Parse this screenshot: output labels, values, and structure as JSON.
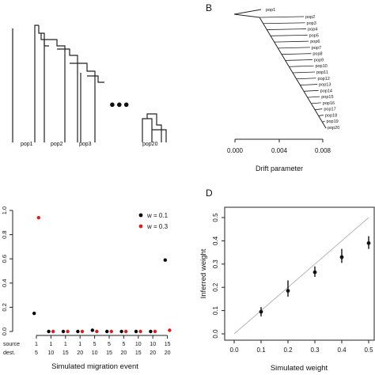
{
  "panels": {
    "A": {
      "labels": [
        "pop1",
        "pop2",
        "pop3",
        "pop20"
      ],
      "ellipsis": "●●●"
    },
    "B": {
      "letter": "B"
    },
    "C": {
      "letter": ""
    },
    "D": {
      "letter": "D"
    }
  },
  "chart_data": [
    {
      "panel": "B",
      "type": "tree",
      "xlabel": "Drift parameter",
      "xticks": [
        "0.000",
        "0.004",
        "0.008"
      ],
      "xlim": [
        0.0,
        0.01
      ],
      "populations": [
        "pop1",
        "pop2",
        "pop3",
        "pop4",
        "pop5",
        "pop6",
        "pop7",
        "pop8",
        "pop9",
        "pop10",
        "pop11",
        "pop12",
        "pop13",
        "pop14",
        "pop15",
        "pop16",
        "pop17",
        "pop18",
        "pop19",
        "pop20"
      ]
    },
    {
      "panel": "C",
      "type": "scatter",
      "xlabel": "Simulated migration event",
      "row_labels": [
        "source",
        "dest."
      ],
      "categories": [
        {
          "source": "1",
          "dest": "5"
        },
        {
          "source": "1",
          "dest": "10"
        },
        {
          "source": "1",
          "dest": "15"
        },
        {
          "source": "1",
          "dest": "20"
        },
        {
          "source": "5",
          "dest": "10"
        },
        {
          "source": "5",
          "dest": "15"
        },
        {
          "source": "5",
          "dest": "20"
        },
        {
          "source": "10",
          "dest": "15"
        },
        {
          "source": "10",
          "dest": "20"
        },
        {
          "source": "15",
          "dest": "20"
        }
      ],
      "ylim": [
        0,
        1.0
      ],
      "yticks": [
        "0.0",
        "0.2",
        "0.4",
        "0.6",
        "0.8",
        "1.0"
      ],
      "series": [
        {
          "name": "w = 0.1",
          "color": "#000000",
          "values": [
            0.15,
            0.0,
            0.0,
            0.0,
            0.01,
            0.0,
            0.0,
            0.0,
            0.0,
            0.59
          ]
        },
        {
          "name": "w = 0.3",
          "color": "#d62020",
          "values": [
            0.94,
            0.0,
            0.0,
            0.0,
            0.0,
            0.0,
            0.0,
            0.0,
            0.0,
            0.01
          ]
        }
      ],
      "legend_position": "top-right"
    },
    {
      "panel": "D",
      "type": "scatter",
      "xlabel": "Simulated weight",
      "ylabel": "Inferred weight",
      "xlim": [
        0.0,
        0.5
      ],
      "ylim": [
        0.0,
        0.55
      ],
      "xticks": [
        "0.0",
        "0.1",
        "0.2",
        "0.3",
        "0.4",
        "0.5"
      ],
      "yticks": [
        "0.0",
        "0.1",
        "0.2",
        "0.3",
        "0.4",
        "0.5"
      ],
      "x": [
        0.1,
        0.2,
        0.3,
        0.4,
        0.5
      ],
      "y": [
        0.095,
        0.185,
        0.265,
        0.33,
        0.39
      ],
      "err_low": [
        0.075,
        0.16,
        0.245,
        0.305,
        0.365
      ],
      "err_high": [
        0.115,
        0.23,
        0.29,
        0.365,
        0.42
      ],
      "reference_line": "y = x"
    }
  ]
}
